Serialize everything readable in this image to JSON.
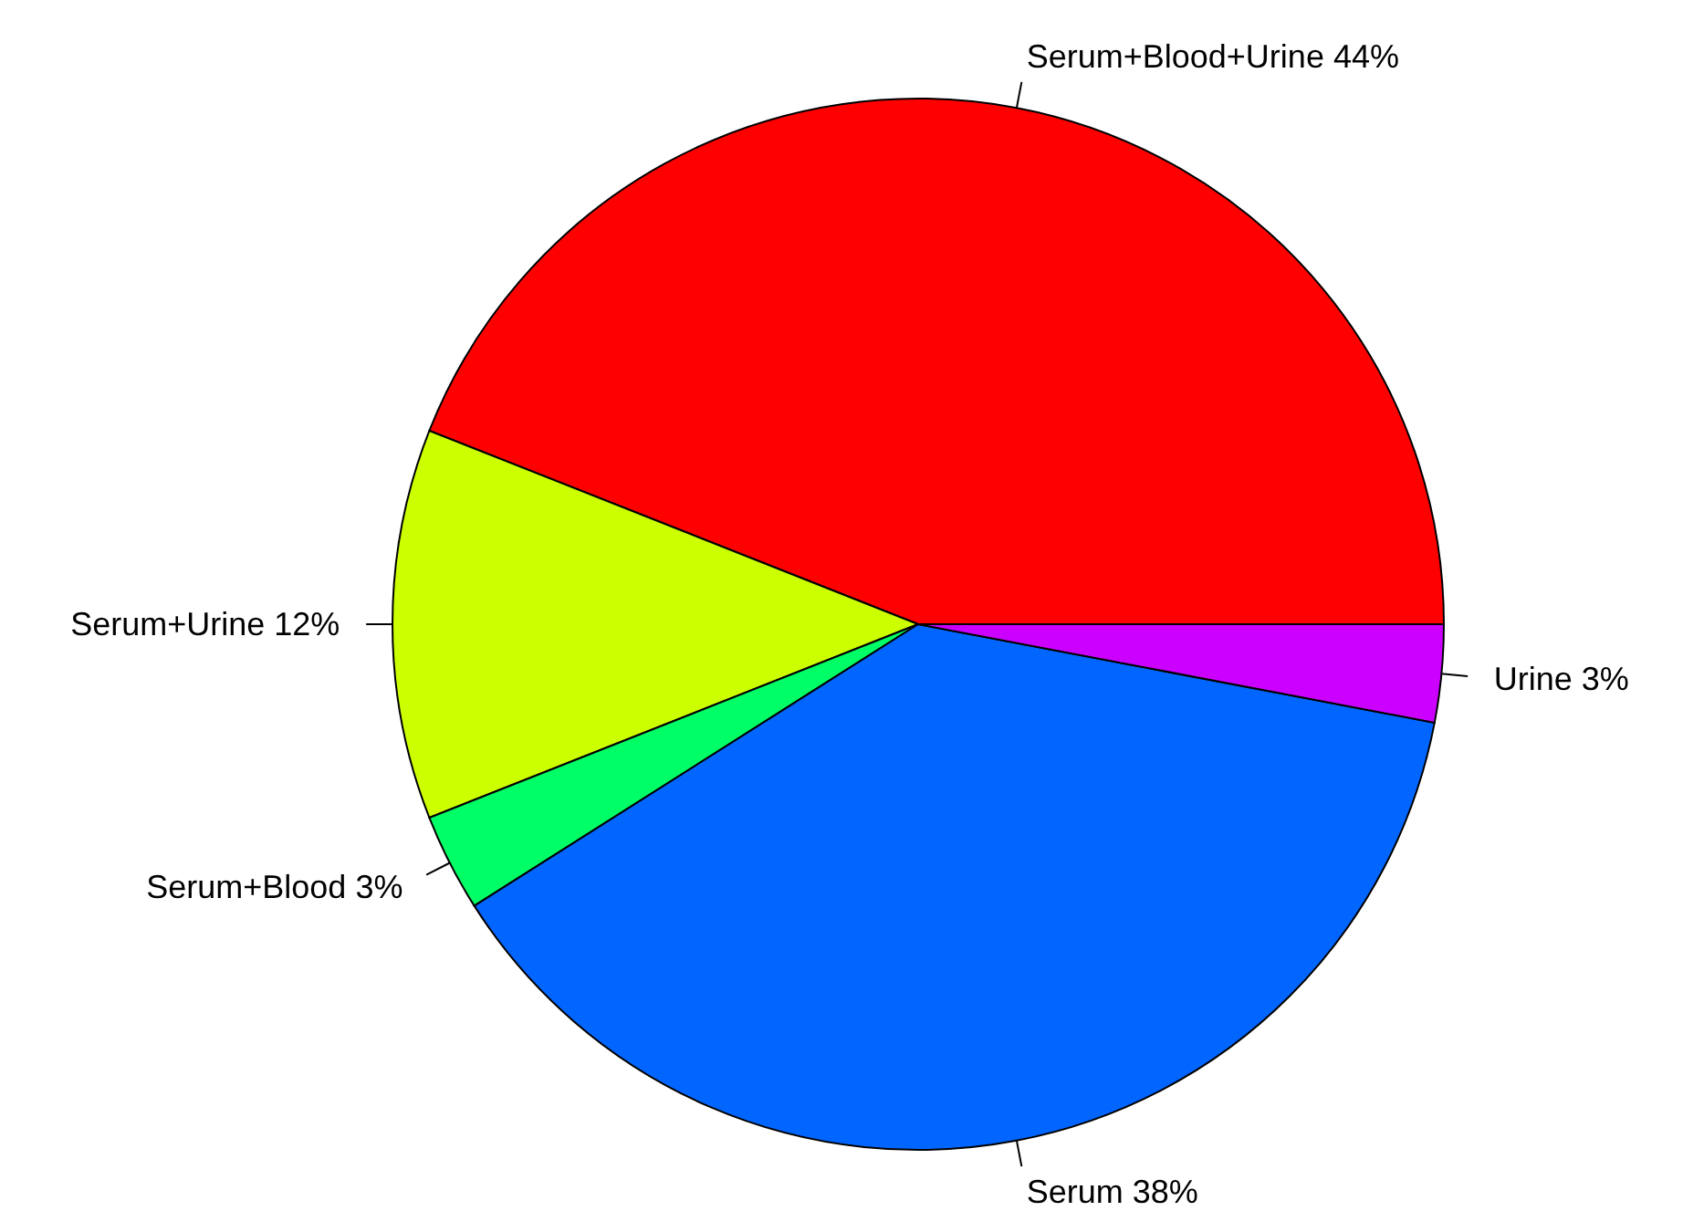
{
  "chart_data": {
    "type": "pie",
    "categories": [
      "Serum+Blood+Urine",
      "Serum+Urine",
      "Serum+Blood",
      "Serum",
      "Urine"
    ],
    "values": [
      44,
      12,
      3,
      38,
      3
    ],
    "value_labels": [
      "44%",
      "12%",
      "3%",
      "38%",
      "3%"
    ],
    "colors": [
      "#ff0000",
      "#ccff00",
      "#00ff66",
      "#0066ff",
      "#cc00ff"
    ]
  }
}
